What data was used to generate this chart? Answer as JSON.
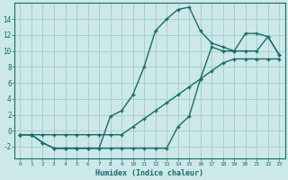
{
  "xlabel": "Humidex (Indice chaleur)",
  "ylabel": "",
  "bg_color": "#cce8e8",
  "grid_color": "#aacece",
  "line_color": "#1a6b6b",
  "xlim": [
    -0.5,
    23.5
  ],
  "ylim": [
    -3.5,
    16.0
  ],
  "xticks": [
    0,
    1,
    2,
    3,
    4,
    5,
    6,
    7,
    8,
    9,
    10,
    11,
    12,
    13,
    14,
    15,
    16,
    17,
    18,
    19,
    20,
    21,
    22,
    23
  ],
  "yticks": [
    -2,
    0,
    2,
    4,
    6,
    8,
    10,
    12,
    14
  ],
  "line1_x": [
    0,
    1,
    2,
    3,
    4,
    5,
    6,
    7,
    8,
    9,
    10,
    11,
    12,
    13,
    14,
    15,
    16,
    17,
    18,
    19,
    20,
    21,
    22,
    23
  ],
  "line1_y": [
    -0.5,
    -0.5,
    -0.5,
    -0.5,
    -0.5,
    -0.5,
    -0.5,
    -0.5,
    -0.5,
    -0.5,
    0.5,
    1.5,
    2.5,
    3.5,
    4.5,
    5.5,
    6.5,
    7.5,
    8.5,
    9.0,
    9.0,
    9.0,
    9.0,
    9.0
  ],
  "line2_x": [
    0,
    1,
    2,
    3,
    4,
    5,
    6,
    7,
    8,
    9,
    10,
    11,
    12,
    13,
    14,
    15,
    16,
    17,
    18,
    19,
    20,
    21,
    22,
    23
  ],
  "line2_y": [
    -0.5,
    -0.5,
    -1.5,
    -2.2,
    -2.2,
    -2.2,
    -2.2,
    -2.2,
    -2.2,
    -2.2,
    -2.2,
    -2.2,
    -2.2,
    -2.2,
    0.5,
    1.8,
    6.5,
    10.5,
    10.0,
    10.0,
    12.2,
    12.2,
    11.8,
    9.5
  ],
  "line3_x": [
    0,
    1,
    2,
    3,
    4,
    5,
    6,
    7,
    8,
    9,
    10,
    11,
    12,
    13,
    14,
    15,
    16,
    17,
    18,
    19,
    20,
    21,
    22,
    23
  ],
  "line3_y": [
    -0.5,
    -0.5,
    -1.5,
    -2.2,
    -2.2,
    -2.2,
    -2.2,
    -2.2,
    1.8,
    2.5,
    4.5,
    8.0,
    12.5,
    14.0,
    15.2,
    15.5,
    12.5,
    11.0,
    10.5,
    10.0,
    10.0,
    10.0,
    11.8,
    9.5
  ]
}
